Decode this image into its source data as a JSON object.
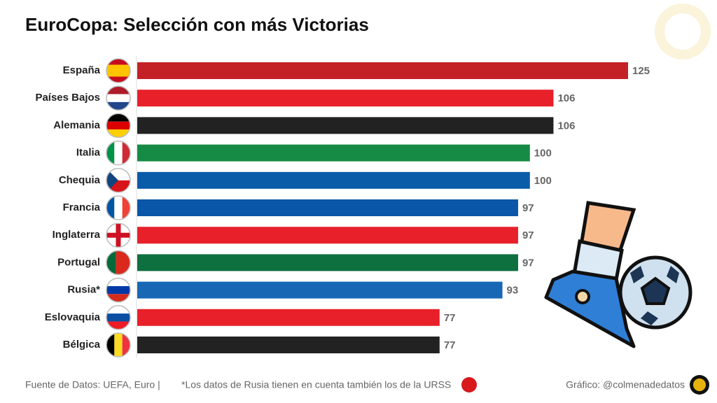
{
  "chart_data": {
    "type": "bar",
    "orientation": "horizontal",
    "title": "EuroCopa: Selección con más Victorias",
    "categories": [
      "España",
      "Países Bajos",
      "Alemania",
      "Italia",
      "Chequia",
      "Francia",
      "Inglaterra",
      "Portugal",
      "Rusia*",
      "Eslovaquia",
      "Bélgica"
    ],
    "values": [
      125,
      106,
      106,
      100,
      100,
      97,
      97,
      97,
      93,
      77,
      77
    ],
    "colors": [
      "#c42127",
      "#e8202a",
      "#222222",
      "#168b45",
      "#0a5ba8",
      "#0a56a8",
      "#e8202a",
      "#0e6f3f",
      "#1767b5",
      "#e8202a",
      "#222222"
    ],
    "xlim": [
      0,
      125
    ],
    "source": "Fuente de Datos: UEFA, Euro |",
    "note": "*Los datos de Rusia tienen en cuenta también los de la URSS",
    "credit": "Gráfico: @colmenadedatos"
  }
}
